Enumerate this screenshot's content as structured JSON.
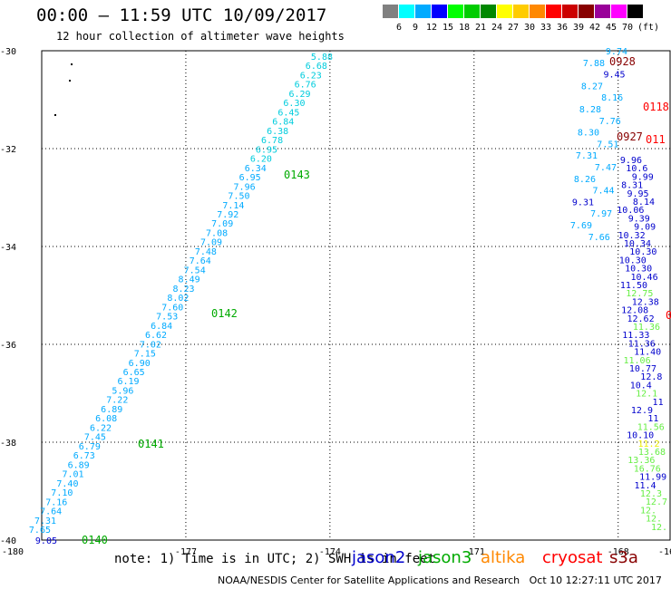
{
  "header": {
    "title": "00:00 – 11:59 UTC 10/09/2017",
    "subtitle": "12 hour collection of altimeter wave heights"
  },
  "legend": {
    "unit": "(ft)",
    "bins": [
      {
        "color": "#808080",
        "label": "3"
      },
      {
        "color": "#00ffff",
        "label": "6"
      },
      {
        "color": "#00aaff",
        "label": "9"
      },
      {
        "color": "#0000ff",
        "label": "12"
      },
      {
        "color": "#00ff00",
        "label": "15"
      },
      {
        "color": "#00cc00",
        "label": "18"
      },
      {
        "color": "#008800",
        "label": "21"
      },
      {
        "color": "#ffff00",
        "label": "24"
      },
      {
        "color": "#ffcc00",
        "label": "27"
      },
      {
        "color": "#ff8800",
        "label": "30"
      },
      {
        "color": "#ff0000",
        "label": "33"
      },
      {
        "color": "#cc0000",
        "label": "36"
      },
      {
        "color": "#880000",
        "label": "39"
      },
      {
        "color": "#990099",
        "label": "42"
      },
      {
        "color": "#ff00ff",
        "label": "45"
      },
      {
        "color": "#000000",
        "label": "70"
      }
    ]
  },
  "map": {
    "lon_ticks": [
      {
        "lon": -180,
        "label": "-180"
      },
      {
        "lon": -177,
        "label": "-177"
      },
      {
        "lon": -174,
        "label": "-174"
      },
      {
        "lon": -171,
        "label": "-171"
      },
      {
        "lon": -168,
        "label": "-168"
      },
      {
        "lon": -165,
        "label": "-165"
      }
    ],
    "lat_ticks": [
      {
        "lat": -30,
        "label": "-30"
      },
      {
        "lat": -32,
        "label": "-32"
      },
      {
        "lat": -34,
        "label": "-34"
      },
      {
        "lat": -36,
        "label": "-36"
      },
      {
        "lat": -38,
        "label": "-38"
      },
      {
        "lat": -40,
        "label": "-40"
      }
    ],
    "track_colors": {
      "jason2": "#0000cc",
      "jason3": "#00aa00",
      "altika": "#ff8800",
      "cryosat": "#ff0000",
      "s3a": "#880000",
      "swh_light": "#00aaff",
      "swh_cyan": "#00ccdd",
      "swh_green_light": "#66ee44",
      "swh_yellow": "#eeee00"
    },
    "track_main": {
      "values": [
        "5.88",
        "6.68",
        "6.23",
        "6.76",
        "6.29",
        "6.30",
        "6.45",
        "6.84",
        "6.38",
        "6.78",
        "6.95",
        "6.20",
        "6.34",
        "6.95",
        "7.96",
        "7.50",
        "7.14",
        "7.92",
        "7.09",
        "7.08",
        "7.09",
        "7.48",
        "7.64",
        "7.54",
        "8.49",
        "8.23",
        "8.02",
        "7.60",
        "7.53",
        "6.84",
        "6.62",
        "7.02",
        "7.15",
        "6.90",
        "6.65",
        "6.19",
        "5.96",
        "7.22",
        "6.89",
        "6.08",
        "6.22",
        "7.45",
        "6.79",
        "6.73",
        "6.89",
        "7.01",
        "7.40",
        "7.10",
        "7.16",
        "7.64",
        "7.31",
        "7.65"
      ],
      "first_value": "9.05",
      "time_labels": [
        "0143",
        "0142",
        "0141",
        "0140"
      ]
    },
    "track_right_a": {
      "values": [
        "9.74",
        "7.88",
        "9.45",
        "8.27",
        "8.16",
        "8.28",
        "7.76",
        "8.30",
        "7.51",
        "7.31",
        "7.47",
        "8.26",
        "7.44",
        "9.31",
        "7.97",
        "7.69",
        "7.66"
      ],
      "time_labels": [
        "0928",
        "0927"
      ]
    },
    "track_right_b": {
      "values": [
        "9.96",
        "10.6",
        "9.99",
        "8.31",
        "9.95",
        "8.14",
        "10.06",
        "9.39",
        "9.09",
        "10.32",
        "10.34",
        "10.30",
        "10.30",
        "10.30",
        "10.46",
        "11.50",
        "12.75",
        "12.38",
        "12.08",
        "12.62",
        "11.36",
        "11.33",
        "11.36",
        "11.40",
        "11.06",
        "10.77",
        "12.8",
        "10.4",
        "12.1",
        "11",
        "12.9",
        "11",
        "11.56",
        "10.10",
        "11.2",
        "13.68",
        "13.36",
        "16.76",
        "11.99",
        "11.4",
        "12.3",
        "12.7",
        "12.",
        "12.",
        "12."
      ]
    },
    "cryosat_labels": [
      "0118",
      "011",
      "0"
    ]
  },
  "footer": {
    "note": "note: 1) Time is in UTC; 2) SWH is in feet",
    "sat_names": [
      {
        "name": "jason2",
        "color": "#0000cc"
      },
      {
        "name": "jason3",
        "color": "#00aa00"
      },
      {
        "name": "altika",
        "color": "#ff8800"
      },
      {
        "name": "cryosat",
        "color": "#ff0000"
      },
      {
        "name": "s3a",
        "color": "#880000"
      }
    ],
    "credit": "NOAA/NESDIS Center for Satellite Applications and Research   Oct 10 12:27:11 UTC 2017"
  }
}
